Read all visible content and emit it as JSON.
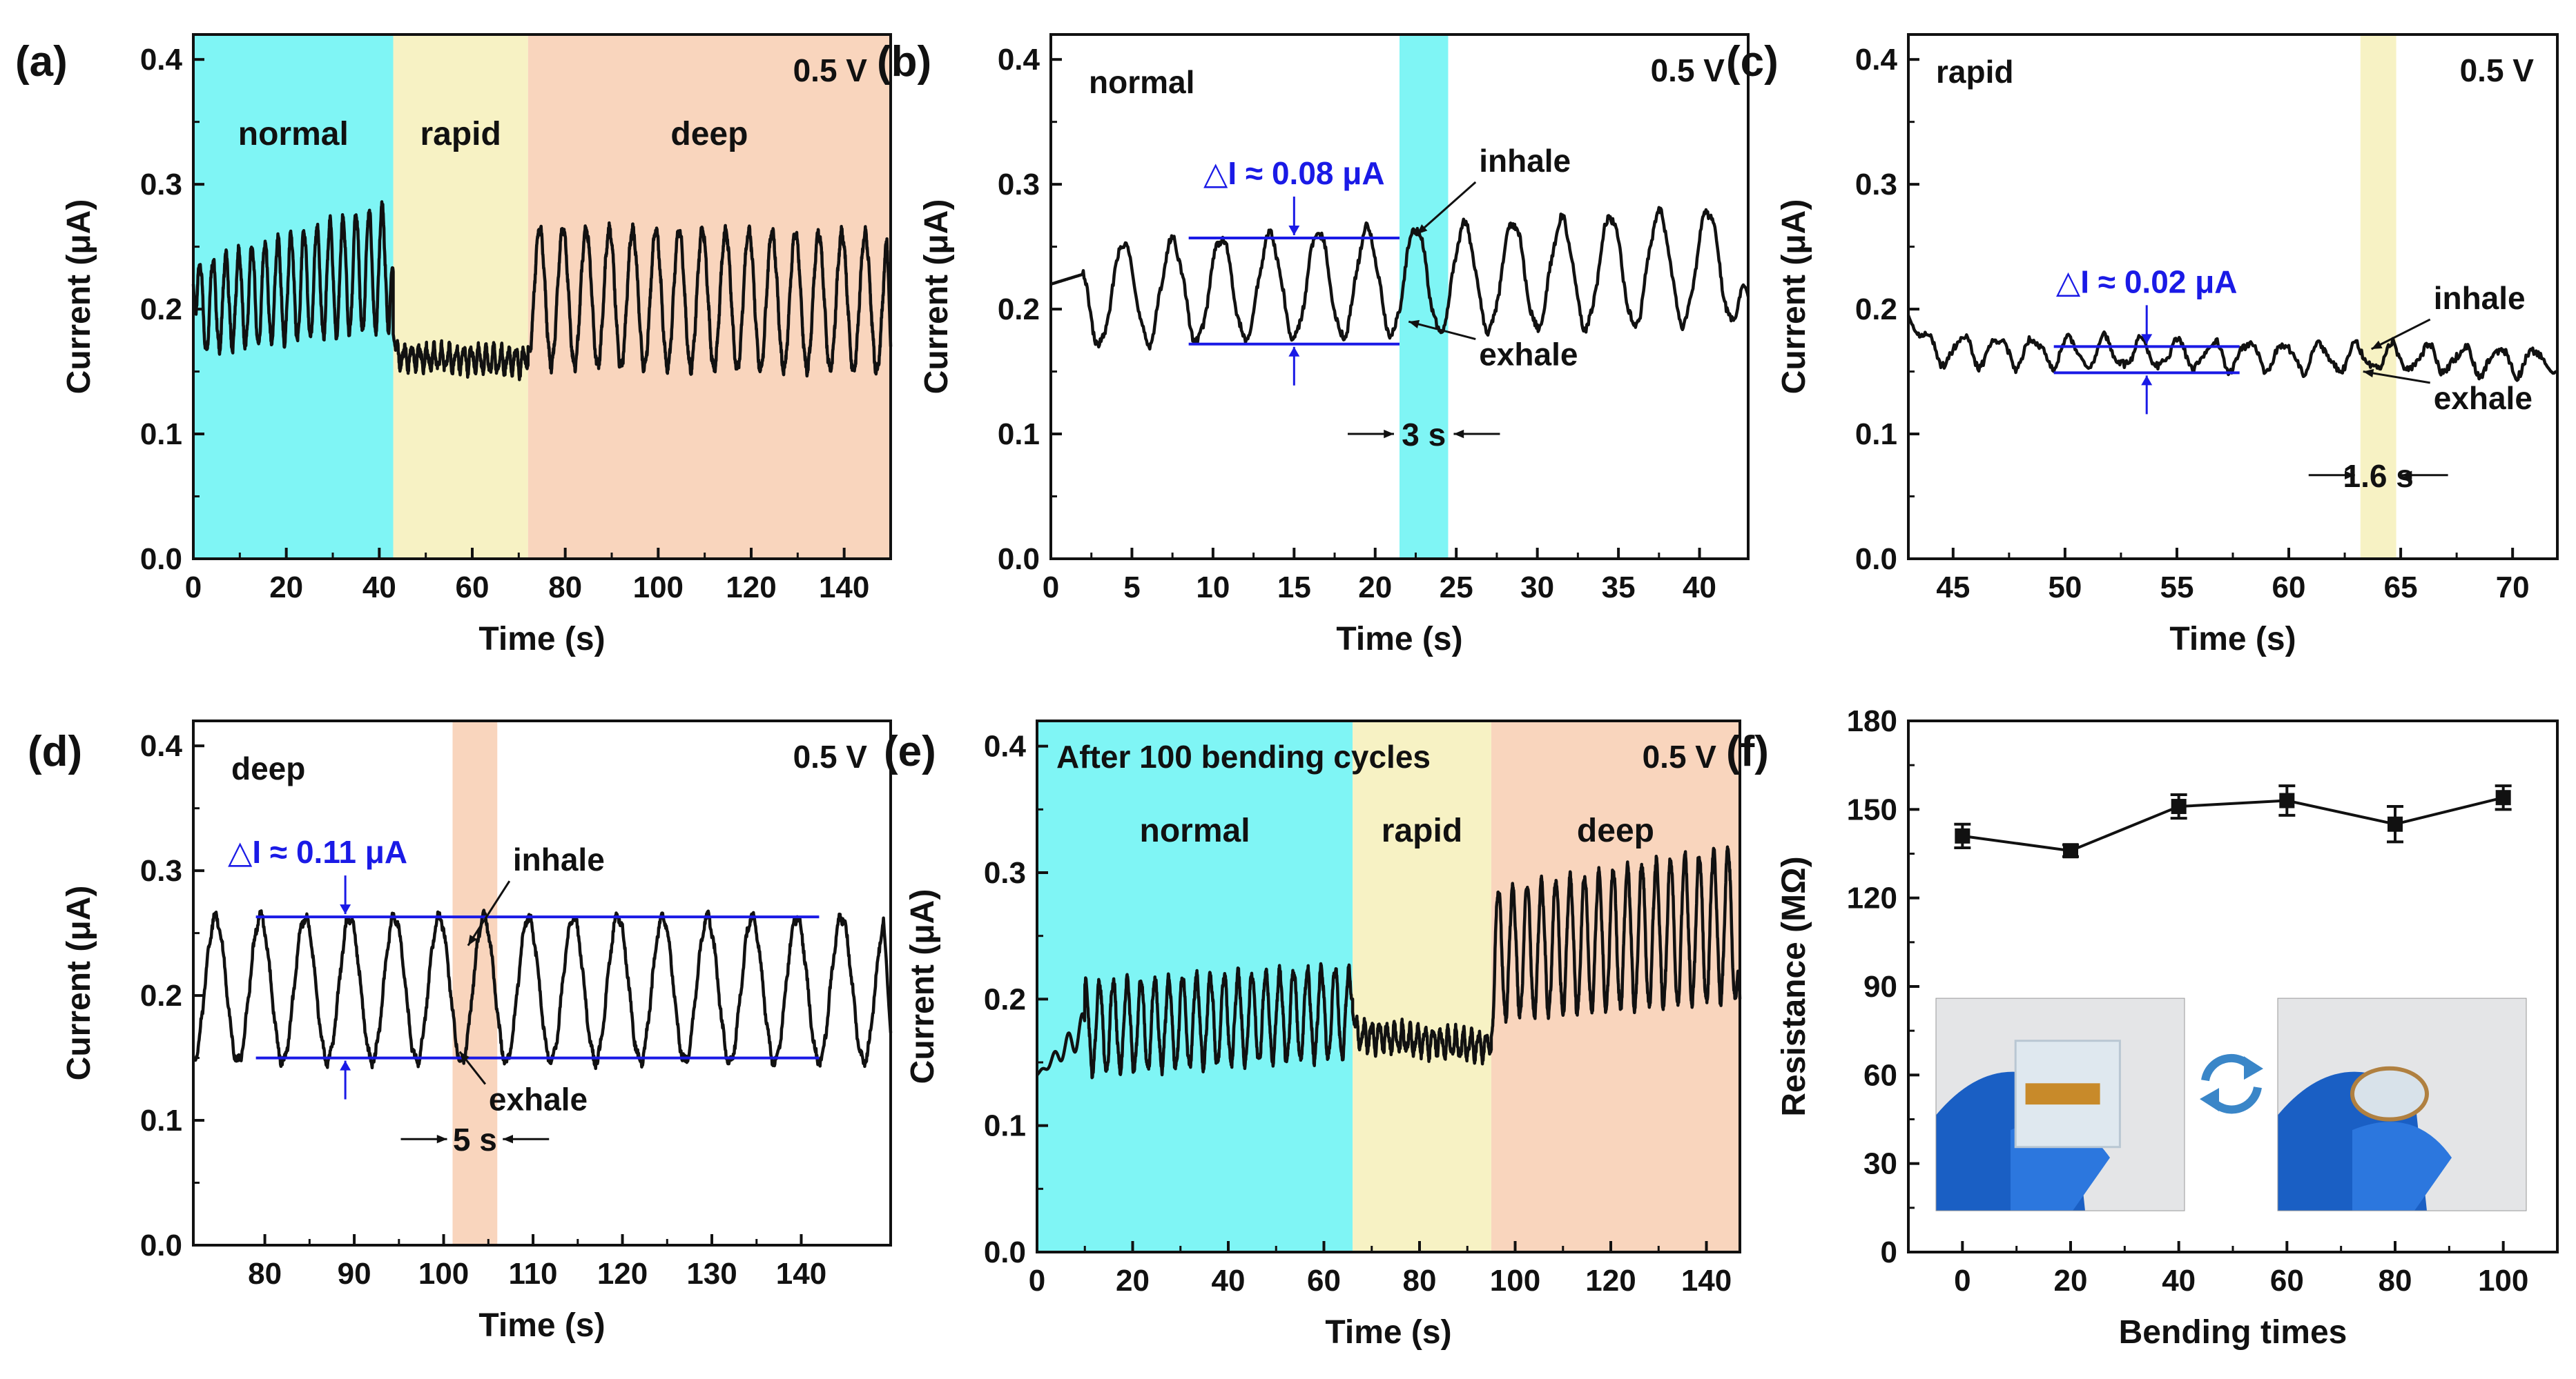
{
  "chart_data": [
    {
      "panel": "(a)",
      "type": "line",
      "xlabel": "Time (s)",
      "ylabel": "Current (μA)",
      "xlim": [
        0,
        150
      ],
      "ylim": [
        0,
        0.42
      ],
      "xticks": [
        0,
        20,
        40,
        60,
        80,
        100,
        120,
        140
      ],
      "yticks": [
        0.0,
        0.1,
        0.2,
        0.3,
        0.4
      ],
      "voltage": "0.5 V",
      "regions": [
        {
          "label": "normal",
          "x": [
            0,
            43
          ],
          "color": "#7ff5f5"
        },
        {
          "label": "rapid",
          "x": [
            43,
            72
          ],
          "color": "#f7f2c4"
        },
        {
          "label": "deep",
          "x": [
            72,
            150
          ],
          "color": "#f9d5bd"
        }
      ],
      "segments": [
        {
          "x": [
            0,
            43
          ],
          "period": 2.8,
          "base": [
            0.2,
            0.235
          ],
          "amp": [
            0.035,
            0.05
          ],
          "start": 0.22,
          "end": 0.23
        },
        {
          "x": [
            43,
            72
          ],
          "period": 1.6,
          "base": [
            0.162,
            0.158
          ],
          "amp": [
            0.008,
            0.01
          ],
          "start": 0.18,
          "end": 0.155
        },
        {
          "x": [
            72,
            150
          ],
          "period": 5.0,
          "base": [
            0.21,
            0.205
          ],
          "amp": [
            0.055,
            0.055
          ],
          "start": 0.17,
          "end": 0.17
        }
      ]
    },
    {
      "panel": "(b)",
      "type": "line",
      "xlabel": "Time (s)",
      "ylabel": "Current (μA)",
      "xlim": [
        0,
        43
      ],
      "ylim": [
        0,
        0.42
      ],
      "xticks": [
        0,
        5,
        10,
        15,
        20,
        25,
        30,
        35,
        40
      ],
      "yticks": [
        0.0,
        0.1,
        0.2,
        0.3,
        0.4
      ],
      "voltage": "0.5 V",
      "mode_label": "normal",
      "highlight": {
        "x": [
          21.5,
          24.5
        ],
        "color": "#7ff5f5"
      },
      "segments": [
        {
          "x": [
            0,
            43
          ],
          "period": 3.0,
          "base": [
            0.21,
            0.235
          ],
          "amp": [
            0.04,
            0.045
          ],
          "start": 0.22,
          "end": 0.21,
          "flat_until": 2
        }
      ],
      "hlines": [
        0.257,
        0.172
      ],
      "hline_x": [
        8.5,
        21.5
      ],
      "delta_label": "△I ≈ 0.08 μA",
      "inhale_label": "inhale",
      "exhale_label": "exhale",
      "period_label": "3 s"
    },
    {
      "panel": "(c)",
      "type": "line",
      "xlabel": "Time (s)",
      "ylabel": "Current (μA)",
      "xlim": [
        43,
        72
      ],
      "ylim": [
        0,
        0.42
      ],
      "xticks": [
        45,
        50,
        55,
        60,
        65,
        70
      ],
      "yticks": [
        0.0,
        0.1,
        0.2,
        0.3,
        0.4
      ],
      "voltage": "0.5 V",
      "mode_label": "rapid",
      "highlight": {
        "x": [
          63.2,
          64.8
        ],
        "color": "#f7f2c4"
      },
      "segments": [
        {
          "x": [
            43,
            72
          ],
          "period": 1.6,
          "base": [
            0.168,
            0.158
          ],
          "amp": [
            0.012,
            0.01
          ],
          "start": 0.195,
          "end": 0.15
        }
      ],
      "hlines": [
        0.17,
        0.149
      ],
      "hline_x": [
        49.5,
        57.8
      ],
      "delta_label": "△I ≈ 0.02 μA",
      "inhale_label": "inhale",
      "exhale_label": "exhale",
      "period_label": "1.6 s"
    },
    {
      "panel": "(d)",
      "type": "line",
      "xlabel": "Time (s)",
      "ylabel": "Current (μA)",
      "xlim": [
        72,
        150
      ],
      "ylim": [
        0,
        0.42
      ],
      "xticks": [
        80,
        90,
        100,
        110,
        120,
        130,
        140
      ],
      "yticks": [
        0.0,
        0.1,
        0.2,
        0.3,
        0.4
      ],
      "voltage": "0.5 V",
      "mode_label": "deep",
      "highlight": {
        "x": [
          101,
          106
        ],
        "color": "#f9d5bd"
      },
      "segments": [
        {
          "x": [
            72,
            150
          ],
          "period": 5.0,
          "base": [
            0.205,
            0.205
          ],
          "amp": [
            0.058,
            0.058
          ],
          "start": 0.15,
          "end": 0.17
        }
      ],
      "hlines": [
        0.263,
        0.15
      ],
      "hline_x": [
        79,
        142
      ],
      "delta_label": "△I ≈ 0.11 μA",
      "inhale_label": "inhale",
      "exhale_label": "exhale",
      "period_label": "5 s"
    },
    {
      "panel": "(e)",
      "type": "line",
      "xlabel": "Time (s)",
      "ylabel": "Current (μA)",
      "xlim": [
        0,
        147
      ],
      "ylim": [
        0,
        0.42
      ],
      "xticks": [
        0,
        20,
        40,
        60,
        80,
        100,
        120,
        140
      ],
      "yticks": [
        0.0,
        0.1,
        0.2,
        0.3,
        0.4
      ],
      "voltage": "0.5 V",
      "title": "After 100 bending cycles",
      "regions": [
        {
          "label": "normal",
          "x": [
            0,
            66
          ],
          "color": "#7ff5f5"
        },
        {
          "label": "rapid",
          "x": [
            66,
            95
          ],
          "color": "#f7f2c4"
        },
        {
          "label": "deep",
          "x": [
            95,
            147
          ],
          "color": "#f9d5bd"
        }
      ],
      "segments": [
        {
          "x": [
            0,
            66
          ],
          "period": 2.9,
          "base": [
            0.175,
            0.19
          ],
          "amp": [
            0.035,
            0.035
          ],
          "start": 0.14,
          "end": 0.2,
          "ramp_until": 10
        },
        {
          "x": [
            66,
            95
          ],
          "period": 1.6,
          "base": [
            0.172,
            0.162
          ],
          "amp": [
            0.01,
            0.01
          ],
          "start": 0.19,
          "end": 0.16
        },
        {
          "x": [
            95,
            147
          ],
          "period": 3.0,
          "base": [
            0.235,
            0.26
          ],
          "amp": [
            0.05,
            0.06
          ],
          "start": 0.17,
          "end": 0.2
        }
      ]
    },
    {
      "panel": "(f)",
      "type": "scatter",
      "xlabel": "Bending times",
      "ylabel": "Resistance (MΩ)",
      "xlim": [
        -10,
        110
      ],
      "ylim": [
        0,
        180
      ],
      "xticks": [
        0,
        20,
        40,
        60,
        80,
        100
      ],
      "yticks": [
        0,
        30,
        60,
        90,
        120,
        150,
        180
      ],
      "x": [
        0,
        20,
        40,
        60,
        80,
        100
      ],
      "y": [
        141,
        136,
        151,
        153,
        145,
        154
      ],
      "yerr": [
        4,
        2,
        4,
        5,
        6,
        4
      ]
    }
  ]
}
